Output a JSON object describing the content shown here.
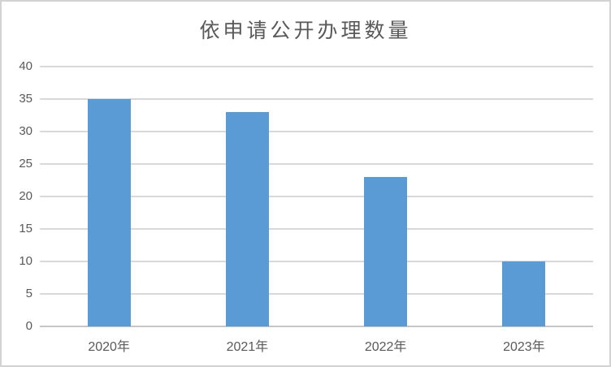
{
  "chart_data": {
    "type": "bar",
    "title": "依申请公开办理数量",
    "categories": [
      "2020年",
      "2021年",
      "2022年",
      "2023年"
    ],
    "values": [
      35,
      33,
      23,
      10
    ],
    "xlabel": "",
    "ylabel": "",
    "ylim": [
      0,
      40
    ],
    "yticks": [
      0,
      5,
      10,
      15,
      20,
      25,
      30,
      35,
      40
    ],
    "grid": true,
    "legend": "none",
    "bar_color": "#5b9bd5",
    "gridline_color": "#d9d9d9",
    "axis_line_color": "#c6c6c6",
    "text_color": "#595959",
    "background_color": "#ffffff",
    "border_color": "#d3d3d3"
  }
}
